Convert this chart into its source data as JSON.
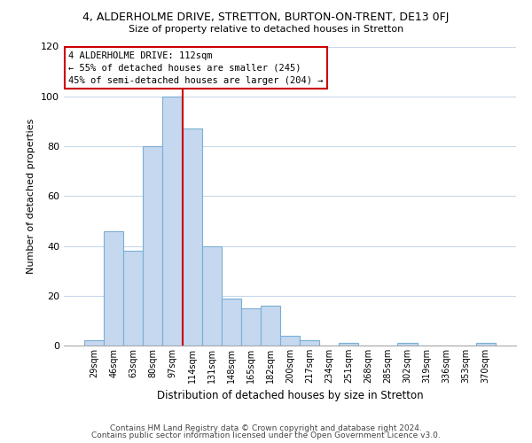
{
  "title_top": "4, ALDERHOLME DRIVE, STRETTON, BURTON-ON-TRENT, DE13 0FJ",
  "title_sub": "Size of property relative to detached houses in Stretton",
  "xlabel": "Distribution of detached houses by size in Stretton",
  "ylabel": "Number of detached properties",
  "bar_labels": [
    "29sqm",
    "46sqm",
    "63sqm",
    "80sqm",
    "97sqm",
    "114sqm",
    "131sqm",
    "148sqm",
    "165sqm",
    "182sqm",
    "200sqm",
    "217sqm",
    "234sqm",
    "251sqm",
    "268sqm",
    "285sqm",
    "302sqm",
    "319sqm",
    "336sqm",
    "353sqm",
    "370sqm"
  ],
  "bar_values": [
    2,
    46,
    38,
    80,
    100,
    87,
    40,
    19,
    15,
    16,
    4,
    2,
    0,
    1,
    0,
    0,
    1,
    0,
    0,
    0,
    1
  ],
  "bar_color": "#c5d8f0",
  "bar_edge_color": "#7aafd4",
  "vline_x_idx": 5,
  "vline_color": "#cc0000",
  "ylim": [
    0,
    120
  ],
  "yticks": [
    0,
    20,
    40,
    60,
    80,
    100,
    120
  ],
  "annotation_title": "4 ALDERHOLME DRIVE: 112sqm",
  "annotation_line1": "← 55% of detached houses are smaller (245)",
  "annotation_line2": "45% of semi-detached houses are larger (204) →",
  "annotation_box_color": "#ffffff",
  "annotation_box_edge": "#cc0000",
  "footer1": "Contains HM Land Registry data © Crown copyright and database right 2024.",
  "footer2": "Contains public sector information licensed under the Open Government Licence v3.0.",
  "background_color": "#ffffff",
  "grid_color": "#c8d8ea"
}
